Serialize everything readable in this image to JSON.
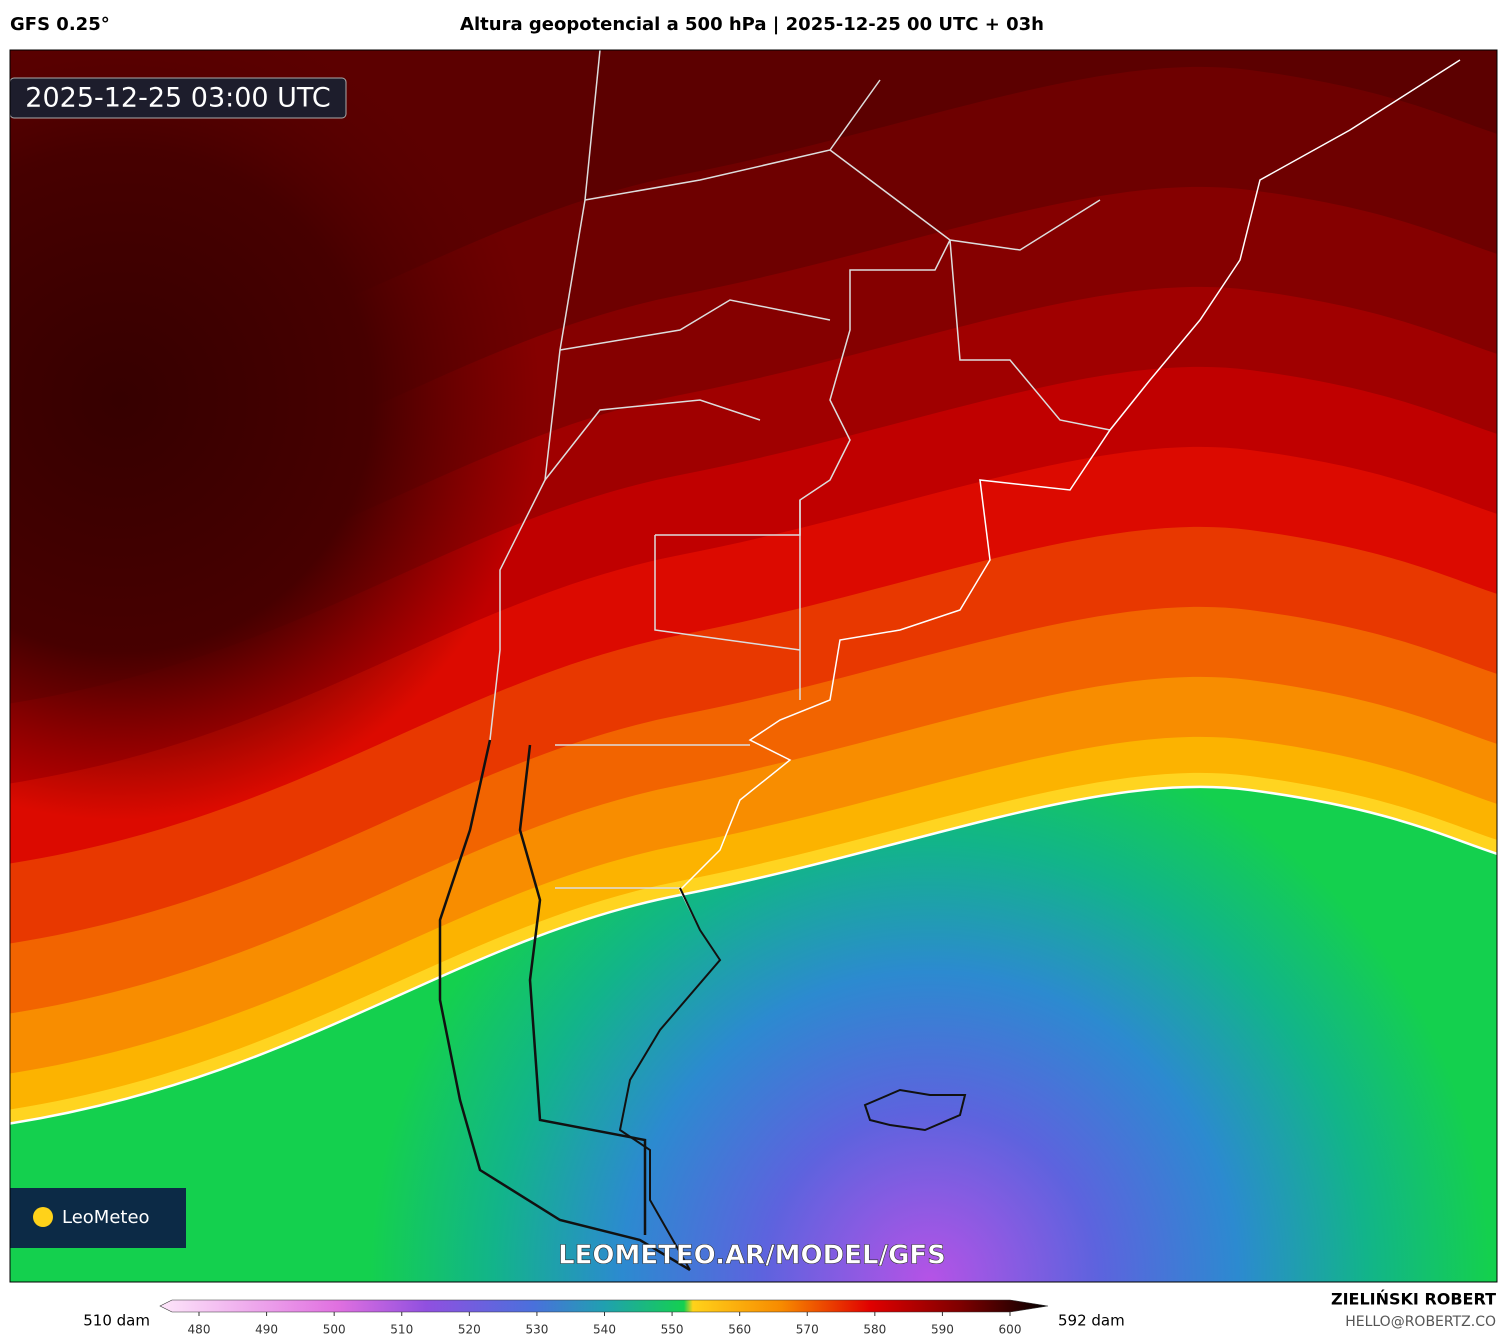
{
  "header": {
    "model": "GFS 0.25°",
    "title": "Altura geopotencial a 500 hPa | 2025-12-25 00 UTC + 03h"
  },
  "map": {
    "timestamp": "2025-12-25 03:00 UTC",
    "logo": "LeoMeteo",
    "watermark": "LEOMETEO.AR/MODEL/GFS"
  },
  "legend": {
    "min_label": "510 dam",
    "max_label": "592 dam",
    "ticks": [
      480,
      490,
      500,
      510,
      520,
      530,
      540,
      550,
      560,
      570,
      580,
      590,
      600
    ]
  },
  "footer": {
    "author": "ZIELIŃSKI ROBERT",
    "email": "HELLO@ROBERTZ.CO"
  }
}
